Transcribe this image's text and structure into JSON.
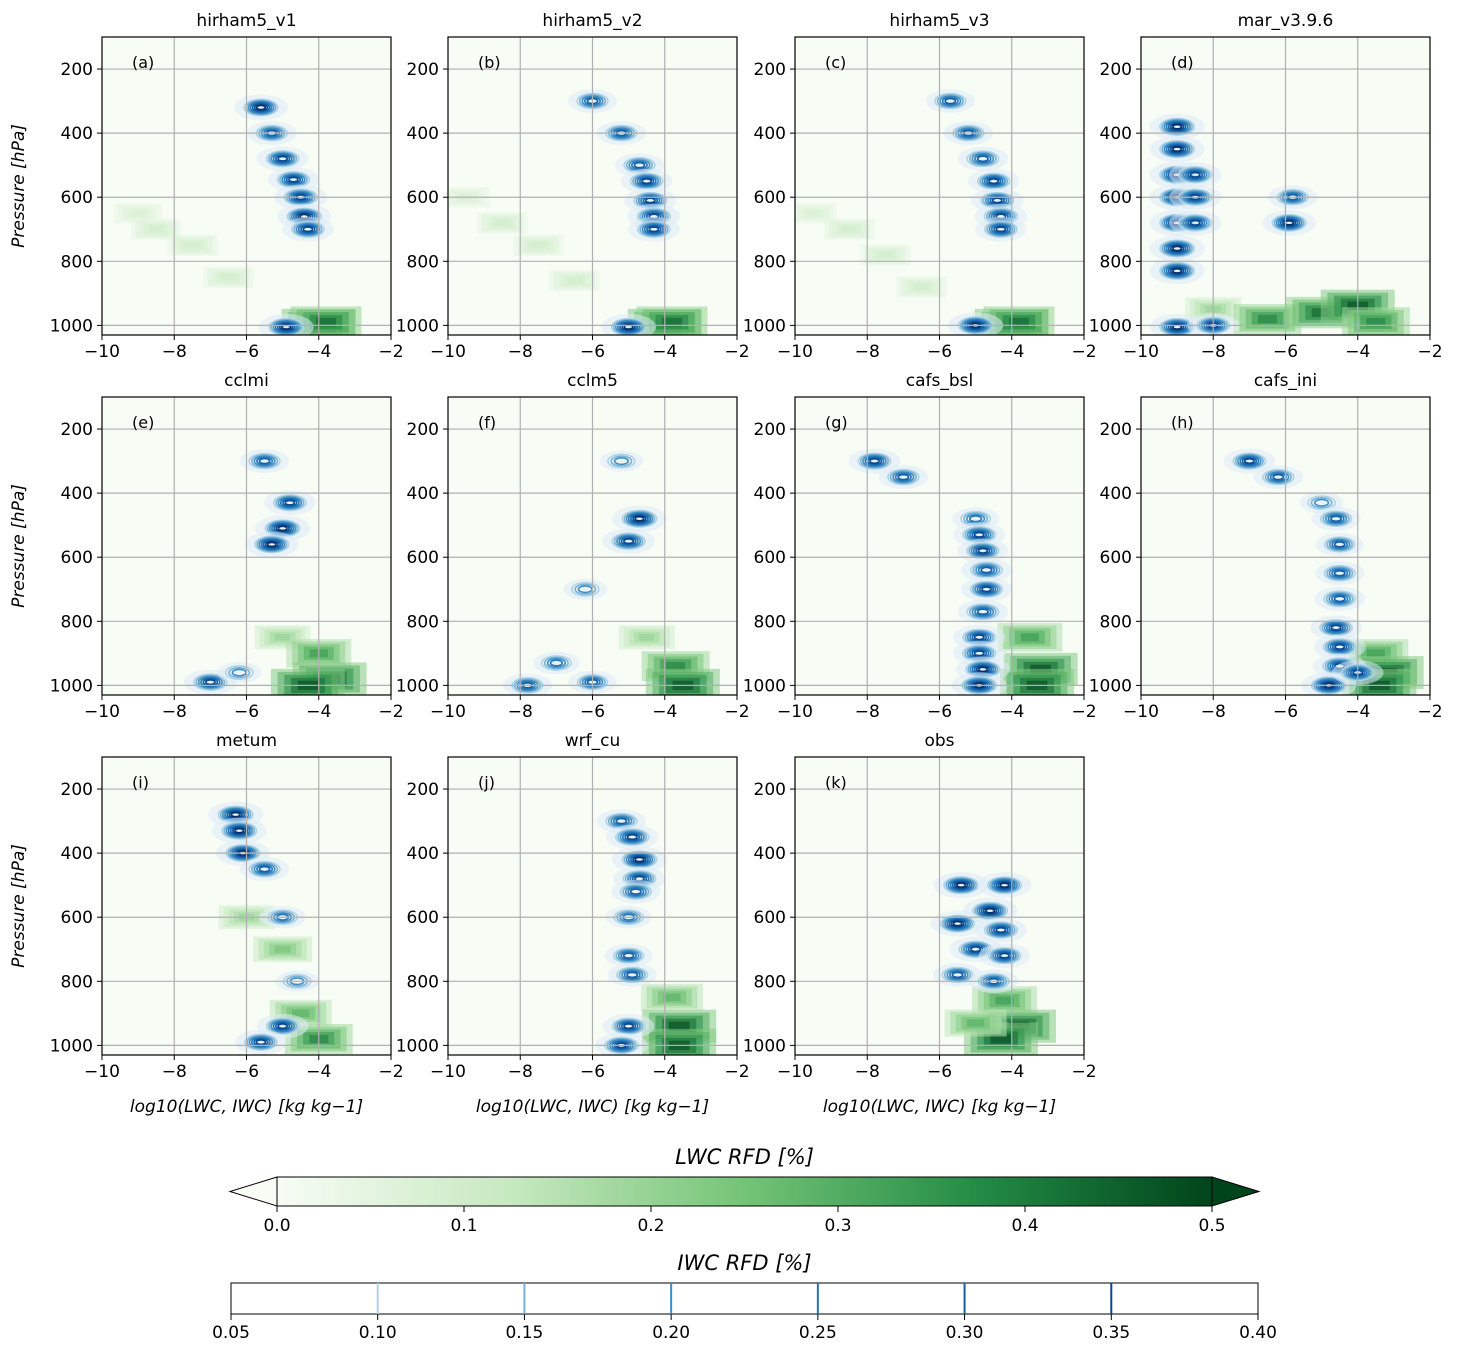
{
  "chart_data": {
    "type": "heatmap",
    "panels": [
      {
        "model": "hirham5_v1",
        "label": "(a)",
        "iwc_blobs": [
          [
            -5.6,
            320,
            0.38
          ],
          [
            -5.3,
            400,
            0.3
          ],
          [
            -5.0,
            480,
            0.34
          ],
          [
            -4.7,
            545,
            0.33
          ],
          [
            -4.5,
            600,
            0.36
          ],
          [
            -4.4,
            660,
            0.38
          ],
          [
            -4.3,
            700,
            0.34
          ],
          [
            -4.9,
            1005,
            0.4
          ]
        ],
        "lwc": [
          [
            -9,
            650,
            0.08
          ],
          [
            -8.5,
            700,
            0.1
          ],
          [
            -7.5,
            750,
            0.1
          ],
          [
            -6.5,
            850,
            0.1
          ],
          [
            -4,
            1000,
            0.5
          ],
          [
            -3.8,
            990,
            0.45
          ]
        ]
      },
      {
        "model": "hirham5_v2",
        "label": "(b)",
        "iwc_blobs": [
          [
            -6.0,
            300,
            0.3
          ],
          [
            -5.2,
            400,
            0.3
          ],
          [
            -4.7,
            500,
            0.3
          ],
          [
            -4.5,
            550,
            0.34
          ],
          [
            -4.4,
            610,
            0.35
          ],
          [
            -4.3,
            660,
            0.36
          ],
          [
            -4.3,
            700,
            0.34
          ],
          [
            -5.0,
            1005,
            0.4
          ]
        ],
        "lwc": [
          [
            -9.5,
            600,
            0.08
          ],
          [
            -8.5,
            680,
            0.1
          ],
          [
            -7.5,
            750,
            0.1
          ],
          [
            -6.5,
            860,
            0.1
          ],
          [
            -4,
            1000,
            0.5
          ],
          [
            -3.8,
            990,
            0.45
          ]
        ]
      },
      {
        "model": "hirham5_v3",
        "label": "(c)",
        "iwc_blobs": [
          [
            -5.7,
            300,
            0.3
          ],
          [
            -5.2,
            400,
            0.3
          ],
          [
            -4.8,
            480,
            0.32
          ],
          [
            -4.5,
            550,
            0.33
          ],
          [
            -4.4,
            610,
            0.35
          ],
          [
            -4.3,
            660,
            0.36
          ],
          [
            -4.3,
            700,
            0.34
          ],
          [
            -5.0,
            1000,
            0.4
          ]
        ],
        "lwc": [
          [
            -9.5,
            650,
            0.08
          ],
          [
            -8.5,
            700,
            0.1
          ],
          [
            -7.5,
            780,
            0.1
          ],
          [
            -6.5,
            880,
            0.1
          ],
          [
            -4,
            1000,
            0.5
          ],
          [
            -3.8,
            990,
            0.45
          ]
        ]
      },
      {
        "model": "mar_v3.9.6",
        "label": "(d)",
        "iwc_blobs": [
          [
            -9.0,
            380,
            0.4
          ],
          [
            -9.0,
            450,
            0.4
          ],
          [
            -9.0,
            530,
            0.4
          ],
          [
            -9.0,
            600,
            0.4
          ],
          [
            -9.0,
            680,
            0.4
          ],
          [
            -9.0,
            760,
            0.4
          ],
          [
            -9.0,
            830,
            0.4
          ],
          [
            -8.5,
            530,
            0.35
          ],
          [
            -8.5,
            600,
            0.35
          ],
          [
            -8.5,
            680,
            0.35
          ],
          [
            -5.9,
            680,
            0.38
          ],
          [
            -5.8,
            600,
            0.3
          ],
          [
            -9.0,
            1005,
            0.4
          ],
          [
            -8.0,
            1000,
            0.35
          ]
        ],
        "lwc": [
          [
            -8,
            950,
            0.2
          ],
          [
            -6.5,
            980,
            0.4
          ],
          [
            -5,
            960,
            0.45
          ],
          [
            -4,
            940,
            0.5
          ],
          [
            -3.5,
            990,
            0.4
          ]
        ]
      },
      {
        "model": "cclmi",
        "label": "(e)",
        "iwc_blobs": [
          [
            -5.5,
            300,
            0.3
          ],
          [
            -4.8,
            430,
            0.34
          ],
          [
            -5.0,
            510,
            0.4
          ],
          [
            -5.3,
            560,
            0.38
          ],
          [
            -7.0,
            990,
            0.36
          ],
          [
            -6.2,
            960,
            0.2
          ]
        ],
        "lwc": [
          [
            -5,
            850,
            0.2
          ],
          [
            -4,
            900,
            0.35
          ],
          [
            -3.7,
            980,
            0.5
          ],
          [
            -4.3,
            1000,
            0.5
          ]
        ]
      },
      {
        "model": "cclm5",
        "label": "(f)",
        "iwc_blobs": [
          [
            -5.2,
            300,
            0.2
          ],
          [
            -4.7,
            480,
            0.4
          ],
          [
            -5.0,
            550,
            0.36
          ],
          [
            -6.2,
            700,
            0.2
          ],
          [
            -7.0,
            930,
            0.26
          ],
          [
            -7.8,
            1000,
            0.3
          ],
          [
            -6.0,
            990,
            0.28
          ]
        ],
        "lwc": [
          [
            -4.5,
            850,
            0.2
          ],
          [
            -3.7,
            940,
            0.4
          ],
          [
            -3.5,
            1000,
            0.5
          ]
        ]
      },
      {
        "model": "cafs_bsl",
        "label": "(g)",
        "iwc_blobs": [
          [
            -7.8,
            300,
            0.34
          ],
          [
            -7.0,
            350,
            0.3
          ],
          [
            -5.0,
            480,
            0.26
          ],
          [
            -4.9,
            530,
            0.35
          ],
          [
            -4.8,
            580,
            0.33
          ],
          [
            -4.7,
            640,
            0.32
          ],
          [
            -4.7,
            700,
            0.33
          ],
          [
            -4.8,
            770,
            0.32
          ],
          [
            -4.9,
            850,
            0.35
          ],
          [
            -4.9,
            900,
            0.36
          ],
          [
            -4.8,
            950,
            0.38
          ],
          [
            -4.9,
            1000,
            0.4
          ]
        ],
        "lwc": [
          [
            -3.5,
            850,
            0.35
          ],
          [
            -3.2,
            950,
            0.5
          ],
          [
            -3.3,
            1000,
            0.5
          ]
        ]
      },
      {
        "model": "cafs_ini",
        "label": "(h)",
        "iwc_blobs": [
          [
            -7.0,
            300,
            0.34
          ],
          [
            -6.2,
            350,
            0.3
          ],
          [
            -5.0,
            430,
            0.2
          ],
          [
            -4.6,
            480,
            0.3
          ],
          [
            -4.5,
            560,
            0.28
          ],
          [
            -4.5,
            650,
            0.3
          ],
          [
            -4.5,
            730,
            0.32
          ],
          [
            -4.6,
            820,
            0.34
          ],
          [
            -4.5,
            880,
            0.35
          ],
          [
            -4.5,
            940,
            0.37
          ],
          [
            -4.8,
            1000,
            0.4
          ],
          [
            -4.0,
            960,
            0.34
          ]
        ],
        "lwc": [
          [
            -3.5,
            900,
            0.35
          ],
          [
            -3.2,
            960,
            0.5
          ],
          [
            -3.4,
            1000,
            0.5
          ]
        ]
      },
      {
        "model": "metum",
        "label": "(i)",
        "iwc_blobs": [
          [
            -6.3,
            280,
            0.4
          ],
          [
            -6.2,
            330,
            0.4
          ],
          [
            -6.1,
            400,
            0.38
          ],
          [
            -5.5,
            450,
            0.3
          ],
          [
            -5.0,
            600,
            0.25
          ],
          [
            -4.6,
            800,
            0.2
          ],
          [
            -5.0,
            940,
            0.34
          ],
          [
            -5.6,
            990,
            0.34
          ]
        ],
        "lwc": [
          [
            -6,
            600,
            0.2
          ],
          [
            -5,
            700,
            0.25
          ],
          [
            -4.5,
            900,
            0.3
          ],
          [
            -4,
            980,
            0.4
          ]
        ]
      },
      {
        "model": "wrf_cu",
        "label": "(j)",
        "iwc_blobs": [
          [
            -5.2,
            300,
            0.3
          ],
          [
            -4.9,
            350,
            0.36
          ],
          [
            -4.7,
            420,
            0.4
          ],
          [
            -4.7,
            480,
            0.35
          ],
          [
            -4.8,
            520,
            0.3
          ],
          [
            -5.0,
            600,
            0.25
          ],
          [
            -5.0,
            720,
            0.28
          ],
          [
            -4.9,
            780,
            0.3
          ],
          [
            -5.0,
            940,
            0.34
          ],
          [
            -5.2,
            1000,
            0.36
          ]
        ],
        "lwc": [
          [
            -3.8,
            850,
            0.3
          ],
          [
            -3.6,
            940,
            0.5
          ],
          [
            -3.6,
            1000,
            0.5
          ]
        ]
      },
      {
        "model": "obs",
        "label": "(k)",
        "iwc_blobs": [
          [
            -5.4,
            500,
            0.4
          ],
          [
            -4.2,
            500,
            0.38
          ],
          [
            -4.6,
            580,
            0.4
          ],
          [
            -5.5,
            620,
            0.38
          ],
          [
            -4.3,
            640,
            0.35
          ],
          [
            -5.0,
            700,
            0.36
          ],
          [
            -4.2,
            720,
            0.34
          ],
          [
            -5.5,
            780,
            0.3
          ],
          [
            -4.5,
            800,
            0.3
          ]
        ],
        "lwc": [
          [
            -4.2,
            860,
            0.35
          ],
          [
            -3.8,
            940,
            0.5
          ],
          [
            -4.3,
            980,
            0.5
          ],
          [
            -5.0,
            930,
            0.3
          ]
        ]
      }
    ],
    "x_range": [
      -10,
      -2
    ],
    "x_ticks": [
      -10,
      -8,
      -6,
      -4,
      -2
    ],
    "y_range": [
      100,
      1030
    ],
    "y_ticks": [
      200,
      400,
      600,
      800,
      1000
    ],
    "y_inverted": true,
    "ylabel": "Pressure [hPa]",
    "xlabel": "log10(LWC, IWC) [kg kg−1]",
    "grid": true,
    "lwc_colorbar": {
      "title": "LWC RFD [%]",
      "range": [
        0.0,
        0.5
      ],
      "ticks": [
        "0.0",
        "0.1",
        "0.2",
        "0.3",
        "0.4",
        "0.5"
      ],
      "colormap": "Greens"
    },
    "iwc_colorbar": {
      "title": "IWC RFD [%]",
      "range": [
        0.05,
        0.4
      ],
      "ticks": [
        "0.05",
        "0.10",
        "0.15",
        "0.20",
        "0.25",
        "0.30",
        "0.35",
        "0.40"
      ],
      "colormap": "Blues"
    }
  }
}
